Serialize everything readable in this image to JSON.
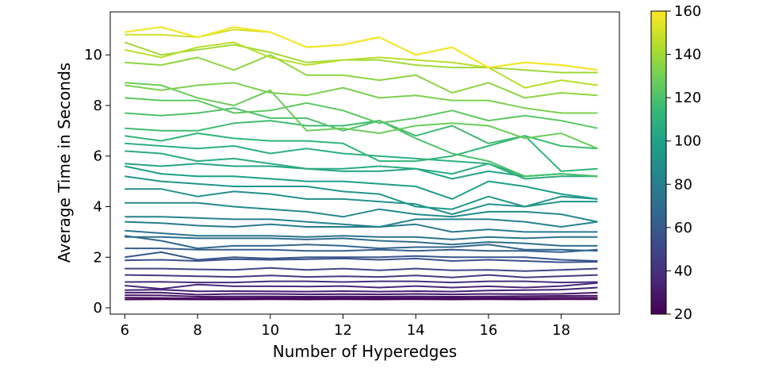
{
  "chart_data": {
    "type": "line",
    "title": "",
    "xlabel": "Number of Hyperedges",
    "ylabel": "Average Time in Seconds",
    "x": [
      6,
      7,
      8,
      9,
      10,
      11,
      12,
      13,
      14,
      15,
      16,
      17,
      18,
      19
    ],
    "xlim": [
      5.6,
      19.6
    ],
    "ylim": [
      -0.25,
      11.7
    ],
    "xticks": [
      6,
      8,
      10,
      12,
      14,
      16,
      18
    ],
    "yticks": [
      0,
      2,
      4,
      6,
      8,
      10
    ],
    "grid": false,
    "legend": "none",
    "colorbar": {
      "label": "",
      "min": 20,
      "max": 160,
      "ticks": [
        20,
        40,
        60,
        80,
        100,
        120,
        140,
        160
      ],
      "colormap": "viridis",
      "colors": [
        "#440154",
        "#482878",
        "#3e4989",
        "#31688e",
        "#26828e",
        "#1f9e89",
        "#35b779",
        "#6ece58",
        "#b5de2b",
        "#fde725"
      ]
    },
    "series": [
      {
        "level": 21,
        "values": [
          0.33,
          0.34,
          0.33,
          0.33,
          0.34,
          0.33,
          0.34,
          0.33,
          0.34,
          0.33,
          0.34,
          0.33,
          0.34,
          0.34
        ]
      },
      {
        "level": 24,
        "values": [
          0.4,
          0.39,
          0.37,
          0.38,
          0.39,
          0.38,
          0.39,
          0.38,
          0.39,
          0.38,
          0.39,
          0.39,
          0.4,
          0.4
        ]
      },
      {
        "level": 27,
        "values": [
          0.5,
          0.49,
          0.44,
          0.45,
          0.45,
          0.44,
          0.45,
          0.44,
          0.45,
          0.44,
          0.45,
          0.46,
          0.47,
          0.48
        ]
      },
      {
        "level": 30,
        "values": [
          0.6,
          0.6,
          0.52,
          0.55,
          0.55,
          0.53,
          0.54,
          0.53,
          0.55,
          0.53,
          0.55,
          0.54,
          0.55,
          0.6
        ]
      },
      {
        "level": 33,
        "values": [
          0.7,
          0.72,
          0.65,
          0.66,
          0.65,
          0.64,
          0.66,
          0.64,
          0.66,
          0.64,
          0.68,
          0.7,
          0.72,
          0.8
        ]
      },
      {
        "level": 36,
        "values": [
          0.88,
          0.75,
          0.92,
          0.85,
          0.85,
          0.84,
          0.86,
          0.8,
          0.86,
          0.8,
          0.85,
          0.8,
          0.86,
          0.98
        ]
      },
      {
        "level": 40,
        "values": [
          1.02,
          1.03,
          1.0,
          1.0,
          1.05,
          1.05,
          1.02,
          1.05,
          1.05,
          1.0,
          1.05,
          1.05,
          1.0,
          1.02
        ]
      },
      {
        "level": 45,
        "values": [
          1.3,
          1.28,
          1.25,
          1.22,
          1.28,
          1.22,
          1.25,
          1.22,
          1.28,
          1.2,
          1.3,
          1.2,
          1.25,
          1.3
        ]
      },
      {
        "level": 50,
        "values": [
          1.55,
          1.55,
          1.52,
          1.5,
          1.58,
          1.5,
          1.55,
          1.48,
          1.55,
          1.48,
          1.5,
          1.45,
          1.5,
          1.55
        ]
      },
      {
        "level": 55,
        "values": [
          1.88,
          1.9,
          1.85,
          1.92,
          1.9,
          1.92,
          1.95,
          1.9,
          1.95,
          1.85,
          1.9,
          1.85,
          1.8,
          1.82
        ]
      },
      {
        "level": 58,
        "values": [
          2.0,
          2.2,
          1.9,
          2.0,
          1.95,
          2.0,
          2.0,
          2.0,
          2.05,
          2.0,
          2.0,
          2.0,
          1.9,
          1.85
        ]
      },
      {
        "level": 62,
        "values": [
          2.35,
          2.35,
          2.3,
          2.3,
          2.3,
          2.25,
          2.25,
          2.3,
          2.25,
          2.3,
          2.25,
          2.25,
          2.2,
          2.3
        ]
      },
      {
        "level": 66,
        "values": [
          2.85,
          2.65,
          2.35,
          2.45,
          2.45,
          2.5,
          2.45,
          2.35,
          2.4,
          2.4,
          2.5,
          2.3,
          2.3,
          2.25
        ]
      },
      {
        "level": 70,
        "values": [
          2.8,
          2.8,
          2.75,
          2.75,
          2.75,
          2.7,
          2.75,
          2.65,
          2.6,
          2.5,
          2.6,
          2.55,
          2.45,
          2.45
        ]
      },
      {
        "level": 74,
        "values": [
          3.05,
          2.95,
          2.85,
          2.85,
          2.85,
          2.8,
          2.85,
          2.8,
          2.8,
          2.7,
          2.8,
          2.75,
          2.8,
          2.8
        ]
      },
      {
        "level": 78,
        "values": [
          3.4,
          3.35,
          3.25,
          3.2,
          3.3,
          3.2,
          3.2,
          3.2,
          3.3,
          3.0,
          3.1,
          3.0,
          3.0,
          3.0
        ]
      },
      {
        "level": 82,
        "values": [
          3.6,
          3.6,
          3.55,
          3.5,
          3.5,
          3.4,
          3.3,
          3.2,
          3.5,
          3.5,
          3.5,
          3.4,
          3.2,
          3.4
        ]
      },
      {
        "level": 86,
        "values": [
          4.15,
          4.15,
          4.15,
          4.0,
          3.9,
          3.8,
          3.6,
          3.9,
          3.7,
          3.6,
          3.8,
          3.8,
          3.7,
          3.4
        ]
      },
      {
        "level": 90,
        "values": [
          4.7,
          4.7,
          4.4,
          4.6,
          4.5,
          4.3,
          4.3,
          4.2,
          4.1,
          3.7,
          4.1,
          4.0,
          4.4,
          4.3
        ]
      },
      {
        "level": 94,
        "values": [
          5.2,
          5.0,
          4.9,
          4.8,
          4.8,
          4.8,
          4.6,
          4.5,
          4.0,
          3.9,
          4.4,
          4.0,
          4.2,
          4.2
        ]
      },
      {
        "level": 98,
        "values": [
          5.6,
          5.3,
          5.2,
          5.2,
          5.1,
          5.0,
          5.0,
          4.9,
          4.8,
          4.3,
          5.0,
          4.8,
          4.5,
          4.3
        ]
      },
      {
        "level": 102,
        "values": [
          5.7,
          5.6,
          5.7,
          5.6,
          5.6,
          5.5,
          5.4,
          5.4,
          5.5,
          5.1,
          5.4,
          5.2,
          5.3,
          5.2
        ]
      },
      {
        "level": 106,
        "values": [
          6.2,
          6.1,
          5.8,
          5.9,
          5.7,
          5.5,
          5.5,
          5.6,
          5.5,
          5.3,
          5.7,
          5.1,
          5.2,
          5.2
        ]
      },
      {
        "level": 109,
        "values": [
          6.5,
          6.4,
          6.3,
          6.4,
          6.1,
          6.3,
          6.1,
          6.0,
          5.9,
          5.8,
          5.7,
          5.2,
          5.3,
          5.2
        ]
      },
      {
        "level": 112,
        "values": [
          6.8,
          6.6,
          6.9,
          6.7,
          6.6,
          6.6,
          6.5,
          5.8,
          5.8,
          6.0,
          6.4,
          6.8,
          5.4,
          5.5
        ]
      },
      {
        "level": 116,
        "values": [
          7.1,
          7.0,
          7.0,
          7.3,
          7.4,
          7.2,
          7.2,
          7.4,
          6.8,
          7.2,
          6.5,
          6.8,
          6.4,
          6.3
        ]
      },
      {
        "level": 120,
        "values": [
          7.7,
          7.6,
          7.7,
          7.9,
          7.5,
          7.5,
          7.0,
          7.4,
          6.7,
          6.1,
          5.8,
          5.2,
          5.3,
          5.2
        ]
      },
      {
        "level": 124,
        "values": [
          8.3,
          8.2,
          8.2,
          7.7,
          7.8,
          8.1,
          7.8,
          7.3,
          7.5,
          7.8,
          7.4,
          7.6,
          7.4,
          7.1
        ]
      },
      {
        "level": 128,
        "values": [
          8.9,
          8.8,
          8.3,
          8.0,
          8.6,
          7.0,
          7.1,
          6.9,
          7.2,
          7.3,
          7.2,
          6.7,
          6.9,
          6.3
        ]
      },
      {
        "level": 132,
        "values": [
          8.8,
          8.6,
          8.8,
          8.9,
          8.5,
          8.4,
          8.7,
          8.3,
          8.4,
          8.2,
          8.2,
          7.9,
          7.7,
          7.7
        ]
      },
      {
        "level": 136,
        "values": [
          9.7,
          9.6,
          9.9,
          9.4,
          10.0,
          9.2,
          9.2,
          9.0,
          9.2,
          8.5,
          8.9,
          8.3,
          8.5,
          8.4
        ]
      },
      {
        "level": 140,
        "values": [
          10.5,
          10.0,
          10.2,
          10.4,
          10.1,
          9.7,
          9.8,
          9.8,
          9.6,
          9.5,
          9.5,
          9.4,
          9.3,
          9.3
        ]
      },
      {
        "level": 145,
        "values": [
          10.2,
          9.9,
          10.3,
          10.5,
          9.9,
          9.6,
          9.8,
          9.9,
          9.8,
          9.7,
          9.5,
          8.7,
          9.0,
          8.8
        ]
      },
      {
        "level": 150,
        "values": [
          10.8,
          10.8,
          10.7,
          11.0,
          10.9,
          10.3,
          10.4,
          10.7,
          10.0,
          10.3,
          9.5,
          9.7,
          9.6,
          9.4
        ]
      },
      {
        "level": 158,
        "values": [
          10.9,
          11.1,
          10.7,
          11.1,
          10.9,
          10.3,
          10.4,
          10.7,
          10.0,
          10.3,
          9.5,
          9.7,
          9.6,
          9.4
        ]
      }
    ]
  }
}
